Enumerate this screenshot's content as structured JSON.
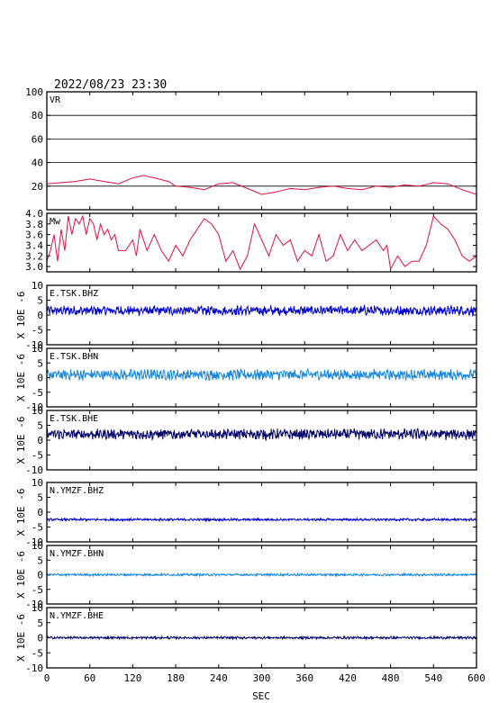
{
  "header": {
    "timestamp": "2022/08/23 23:30"
  },
  "chart_data": [
    {
      "type": "line",
      "label": "VR",
      "ylim": [
        0,
        100
      ],
      "yticks": [
        20,
        40,
        60,
        80,
        100
      ],
      "grid": true,
      "color": "#dd1144",
      "x": [
        0,
        20,
        40,
        60,
        80,
        100,
        120,
        135,
        150,
        170,
        180,
        200,
        220,
        240,
        260,
        280,
        300,
        320,
        340,
        360,
        380,
        400,
        420,
        440,
        460,
        480,
        500,
        520,
        540,
        560,
        580,
        600
      ],
      "y": [
        22,
        23,
        24,
        26,
        24,
        22,
        27,
        29,
        27,
        24,
        20,
        19,
        17,
        22,
        23,
        18,
        13,
        15,
        18,
        17,
        19,
        20,
        18,
        17,
        20,
        19,
        21,
        20,
        23,
        22,
        17,
        13
      ]
    },
    {
      "type": "line",
      "label": "Mw",
      "ylim": [
        2.9,
        4.0
      ],
      "yticks": [
        3.0,
        3.2,
        3.4,
        3.6,
        3.8,
        4.0
      ],
      "color": "#dd1144",
      "x": [
        0,
        5,
        10,
        15,
        20,
        25,
        30,
        35,
        40,
        45,
        50,
        55,
        60,
        65,
        70,
        75,
        80,
        85,
        90,
        95,
        100,
        110,
        120,
        125,
        130,
        140,
        150,
        160,
        170,
        180,
        190,
        200,
        210,
        220,
        230,
        240,
        250,
        260,
        270,
        280,
        290,
        300,
        310,
        320,
        330,
        340,
        350,
        360,
        370,
        380,
        390,
        400,
        410,
        420,
        430,
        440,
        450,
        460,
        470,
        475,
        480,
        490,
        500,
        510,
        520,
        530,
        540,
        550,
        560,
        570,
        580,
        590,
        600
      ],
      "y": [
        3.1,
        3.3,
        3.6,
        3.1,
        3.7,
        3.3,
        3.95,
        3.6,
        3.9,
        3.8,
        3.95,
        3.6,
        3.9,
        3.8,
        3.5,
        3.8,
        3.6,
        3.7,
        3.5,
        3.6,
        3.3,
        3.3,
        3.5,
        3.2,
        3.7,
        3.3,
        3.6,
        3.3,
        3.1,
        3.4,
        3.2,
        3.5,
        3.7,
        3.9,
        3.8,
        3.6,
        3.1,
        3.3,
        2.95,
        3.2,
        3.8,
        3.5,
        3.2,
        3.6,
        3.4,
        3.5,
        3.1,
        3.3,
        3.2,
        3.6,
        3.1,
        3.2,
        3.6,
        3.3,
        3.5,
        3.3,
        3.4,
        3.5,
        3.3,
        3.4,
        2.95,
        3.2,
        3.0,
        3.1,
        3.1,
        3.4,
        3.95,
        3.8,
        3.7,
        3.5,
        3.2,
        3.1,
        3.2
      ]
    },
    {
      "type": "line",
      "label": "E.TSK.BHZ",
      "ylabel": "X 10E -6",
      "ylim": [
        -10,
        10
      ],
      "yticks": [
        -10,
        -5,
        0,
        5,
        10
      ],
      "color": "#0000cc",
      "baseline": 1.5,
      "amplitude": 0.8
    },
    {
      "type": "line",
      "label": "E.TSK.BHN",
      "ylabel": "X 10E -6",
      "ylim": [
        -10,
        10
      ],
      "yticks": [
        -10,
        -5,
        0,
        5,
        10
      ],
      "color": "#1a88dd",
      "baseline": 1.0,
      "amplitude": 0.9
    },
    {
      "type": "line",
      "label": "E.TSK.BHE",
      "ylabel": "X 10E -6",
      "ylim": [
        -10,
        10
      ],
      "yticks": [
        -10,
        -5,
        0,
        5,
        10
      ],
      "color": "#000066",
      "baseline": 2.0,
      "amplitude": 0.9
    },
    {
      "type": "line",
      "label": "N.YMZF.BHZ",
      "ylabel": "X 10E -6",
      "ylim": [
        -10,
        10
      ],
      "yticks": [
        -10,
        -5,
        0,
        5,
        10
      ],
      "color": "#0000cc",
      "baseline": -2.5,
      "amplitude": 0.2
    },
    {
      "type": "line",
      "label": "N.YMZF.BHN",
      "ylabel": "X 10E -6",
      "ylim": [
        -10,
        10
      ],
      "yticks": [
        -10,
        -5,
        0,
        5,
        10
      ],
      "color": "#1a88dd",
      "baseline": 0.0,
      "amplitude": 0.2
    },
    {
      "type": "line",
      "label": "N.YMZF.BHE",
      "ylabel": "X 10E -6",
      "ylim": [
        -10,
        10
      ],
      "yticks": [
        -10,
        -5,
        0,
        5,
        10
      ],
      "color": "#000066",
      "baseline": 0.0,
      "amplitude": 0.2
    }
  ],
  "x_axis": {
    "xlabel": "SEC",
    "xlim": [
      0,
      600
    ],
    "ticks": [
      0,
      60,
      120,
      180,
      240,
      300,
      360,
      420,
      480,
      540,
      600
    ]
  }
}
